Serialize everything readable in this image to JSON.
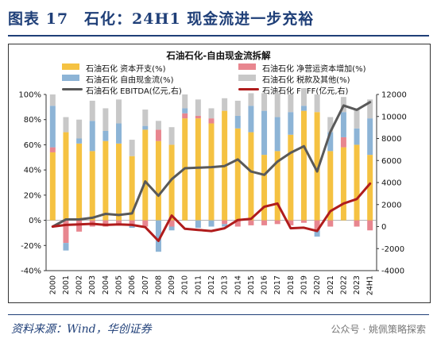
{
  "header": {
    "title": "图表 17　石化：24H1 现金流进一步充裕"
  },
  "footer": {
    "source": "资料来源：Wind，华创证券",
    "watermark": "公众号 · 姚佩策略探索"
  },
  "colors": {
    "capex": "#f5c242",
    "wc": "#e8868f",
    "ocf": "#8db4d6",
    "tax": "#c8c8c8",
    "ebitda": "#595959",
    "fcff": "#b01c1c",
    "header": "#1f3f78"
  },
  "chart_data": {
    "type": "bar",
    "title": "石油石化-自由现金流拆解",
    "categories": [
      "2000",
      "2001",
      "2002",
      "2003",
      "2004",
      "2005",
      "2006",
      "2007",
      "2008",
      "2009",
      "2010",
      "2011",
      "2012",
      "2013",
      "2014",
      "2015",
      "2016",
      "2017",
      "2018",
      "2019",
      "2020",
      "2021",
      "2022",
      "2023",
      "24H1"
    ],
    "left_axis": {
      "ylim": [
        -40,
        100
      ],
      "ticks": [
        "100%",
        "80%",
        "60%",
        "40%",
        "20%",
        "0%",
        "-20%",
        "-40%"
      ]
    },
    "right_axis": {
      "ylim": [
        -4000,
        12000
      ],
      "ticks": [
        "12000",
        "10000",
        "8000",
        "6000",
        "4000",
        "2000",
        "0",
        "-2000",
        "-4000"
      ]
    },
    "legend": [
      {
        "key": "capex",
        "label": "石油石化 资本开支(%)",
        "kind": "bar"
      },
      {
        "key": "wc",
        "label": "石油石化 净营运资本增加(%)",
        "kind": "bar"
      },
      {
        "key": "ocf",
        "label": "石油石化 自由现金流(%)",
        "kind": "bar"
      },
      {
        "key": "tax",
        "label": "石油石化 税款及其他(%)",
        "kind": "bar"
      },
      {
        "key": "ebitda",
        "label": "石油石化 EBITDA(亿元,右)",
        "kind": "line"
      },
      {
        "key": "fcff",
        "label": "石油石化 FCFF(亿元,右)",
        "kind": "line"
      }
    ],
    "series": [
      {
        "name": "石油石化 资本开支(%)",
        "key": "capex",
        "values": [
          54,
          70,
          61,
          55,
          63,
          61,
          51,
          72,
          63,
          60,
          81,
          81,
          77,
          87,
          73,
          70,
          52,
          55,
          68,
          87,
          86,
          55,
          58,
          60,
          52
        ]
      },
      {
        "name": "石油石化 净营运资本增加(%)",
        "key": "wc",
        "values": [
          4,
          -18,
          -9,
          -5,
          -5,
          -3,
          -3,
          -5,
          9,
          -5,
          4,
          2,
          4,
          -3,
          -5,
          -4,
          -4,
          -3,
          -4,
          -2,
          -8,
          -5,
          8,
          -5,
          -8
        ]
      },
      {
        "name": "石油石化 自由现金流(%)",
        "key": "ocf",
        "values": [
          33,
          -6,
          4,
          24,
          8,
          16,
          -3,
          3,
          -25,
          -3,
          4,
          -6,
          -5,
          -2,
          10,
          21,
          35,
          27,
          18,
          4,
          -5,
          15,
          20,
          13,
          29
        ]
      },
      {
        "name": "石油石化 税款及其他(%)",
        "key": "tax",
        "values": [
          9,
          12,
          15,
          16,
          18,
          19,
          13,
          13,
          7,
          14,
          11,
          13,
          8,
          10,
          12,
          10,
          14,
          19,
          14,
          14,
          14,
          12,
          12,
          16,
          15
        ]
      },
      {
        "name": "石油石化 EBITDA(亿元,右)",
        "key": "ebitda",
        "axis": "right",
        "values": [
          0,
          650,
          650,
          800,
          1150,
          1050,
          1200,
          4100,
          2800,
          4300,
          5300,
          5350,
          5400,
          5500,
          6100,
          5000,
          4700,
          5900,
          6700,
          7300,
          5000,
          8600,
          11000,
          10600,
          11300
        ]
      },
      {
        "name": "石油石化 FCFF(亿元,右)",
        "key": "fcff",
        "axis": "right",
        "values": [
          0,
          150,
          200,
          250,
          150,
          200,
          150,
          -50,
          -1300,
          1000,
          -200,
          -300,
          -400,
          -150,
          600,
          700,
          1800,
          2100,
          -150,
          -100,
          -400,
          1400,
          2100,
          2500,
          3900
        ]
      }
    ]
  }
}
